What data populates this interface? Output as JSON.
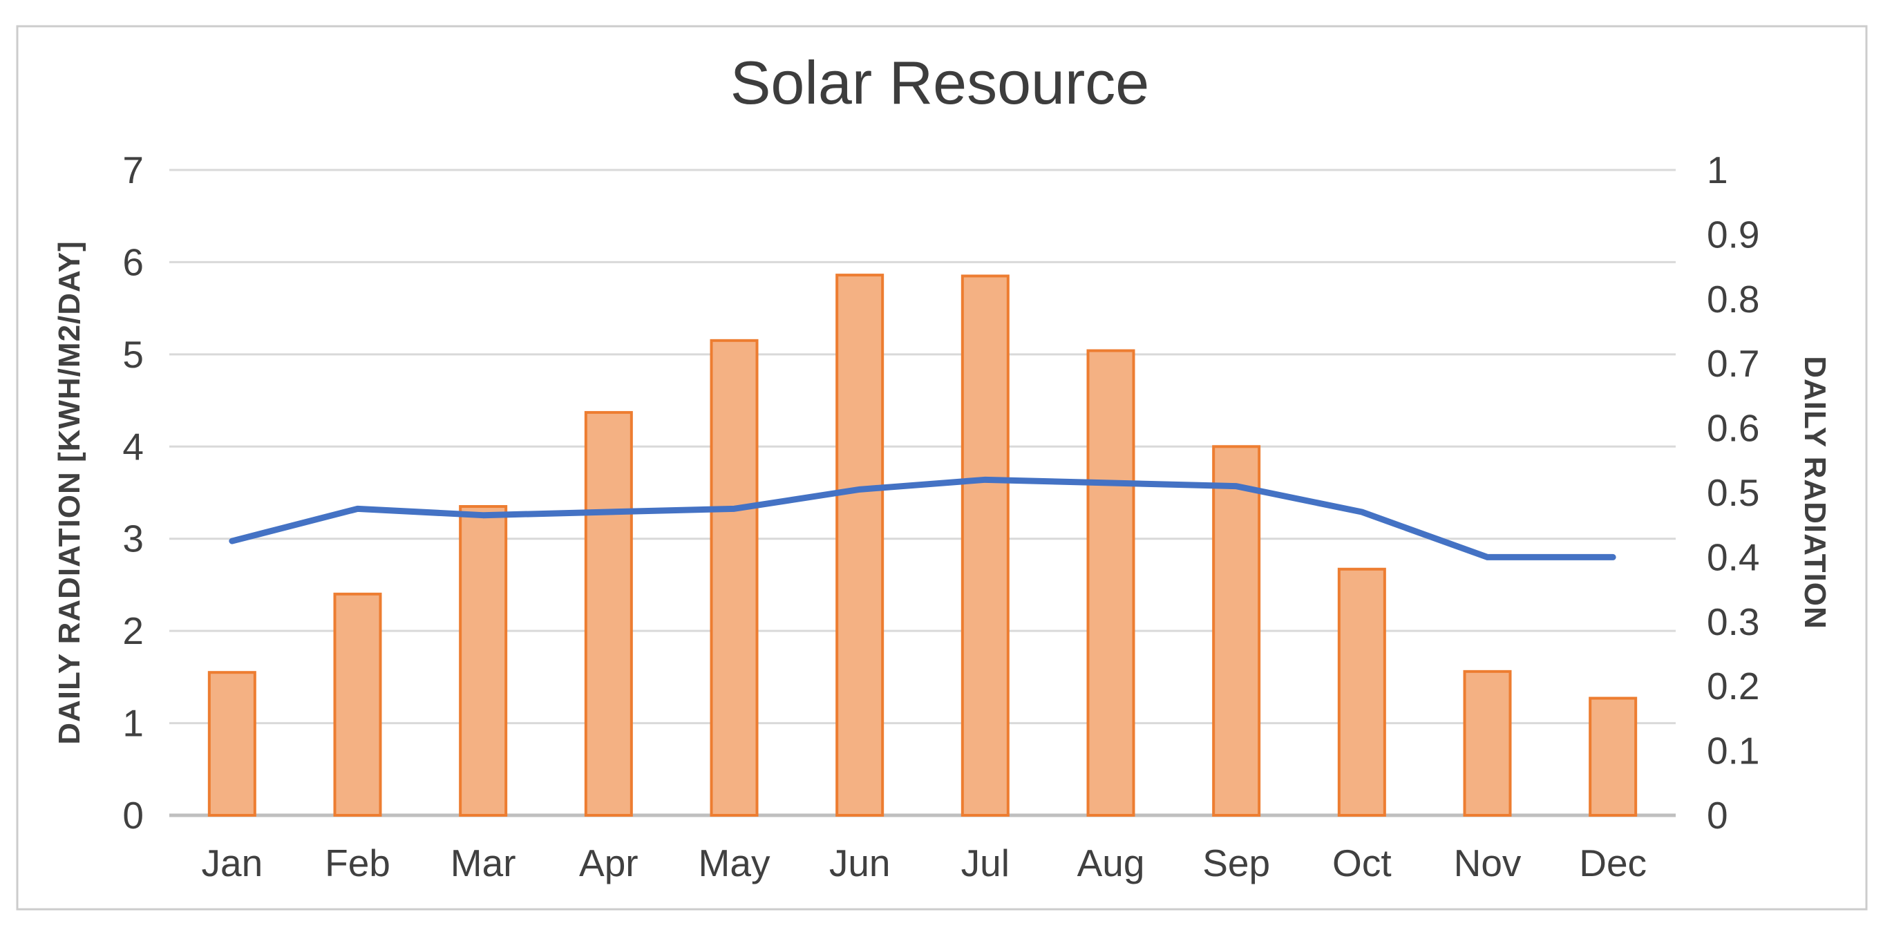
{
  "figure": {
    "title": "Solar Resource"
  },
  "left_axis": {
    "title": "DAILY RADIATION [KWH/M2/DAY]",
    "min": 0,
    "max": 7,
    "tick_labels": [
      "0",
      "1",
      "2",
      "3",
      "4",
      "5",
      "6",
      "7"
    ],
    "tick_values": [
      0,
      1,
      2,
      3,
      4,
      5,
      6,
      7
    ]
  },
  "right_axis": {
    "title": "DAILY RADIATION",
    "min": 0,
    "max": 1,
    "tick_labels": [
      "0",
      "0.1",
      "0.2",
      "0.3",
      "0.4",
      "0.5",
      "0.6",
      "0.7",
      "0.8",
      "0.9",
      "1"
    ],
    "tick_values": [
      0,
      0.1,
      0.2,
      0.3,
      0.4,
      0.5,
      0.6,
      0.7,
      0.8,
      0.9,
      1
    ]
  },
  "chart_data": {
    "type": "combo",
    "title": "Solar Resource",
    "categories": [
      "Jan",
      "Feb",
      "Mar",
      "Apr",
      "May",
      "Jun",
      "Jul",
      "Aug",
      "Sep",
      "Oct",
      "Nov",
      "Dec"
    ],
    "series": [
      {
        "name": "DAILY RADIATION [KWH/M2/DAY]",
        "type": "bar",
        "axis": "left",
        "values": [
          1.55,
          2.4,
          3.35,
          4.37,
          5.15,
          5.86,
          5.85,
          5.04,
          4.0,
          2.67,
          1.56,
          1.27
        ]
      },
      {
        "name": "DAILY RADIATION",
        "type": "line",
        "axis": "right",
        "values": [
          0.425,
          0.475,
          0.465,
          0.47,
          0.475,
          0.505,
          0.52,
          0.515,
          0.51,
          0.47,
          0.4,
          0.4
        ]
      }
    ],
    "left_ylim": [
      0,
      7
    ],
    "right_ylim": [
      0,
      1
    ],
    "grid": true,
    "legend": false
  },
  "colors": {
    "bar_fill": "#F4B183",
    "bar_border": "#ED7D31",
    "line": "#4472C4",
    "gridline": "#D9D9D9",
    "axis_line": "#BFBFBF",
    "tick_text": "#404040",
    "title_text": "#3D3D3D",
    "frame": "#CCCCCC",
    "background": "#FFFFFF"
  }
}
